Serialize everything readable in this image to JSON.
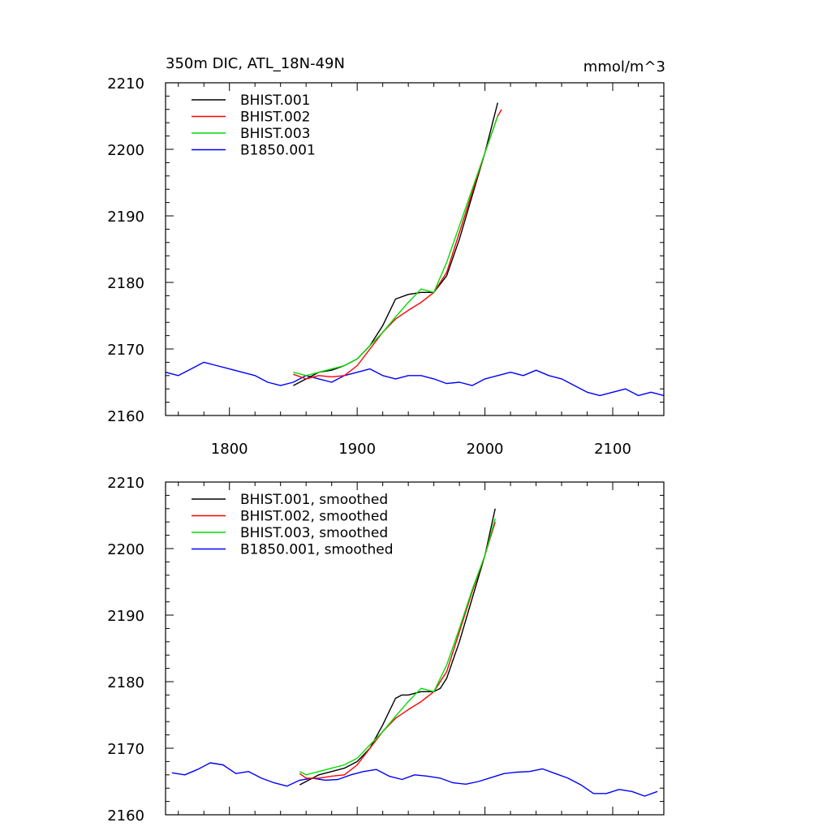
{
  "chart_data": [
    {
      "type": "line",
      "title": "350m DIC, ATL_18N-49N",
      "units": "mmol/m^3",
      "xlabel": "",
      "ylabel": "",
      "xlim": [
        1750,
        2140
      ],
      "ylim": [
        2160,
        2210
      ],
      "x_ticks": [
        1800,
        1900,
        2000,
        2100
      ],
      "y_ticks": [
        2160,
        2170,
        2180,
        2190,
        2200,
        2210
      ],
      "grid": false,
      "legend": "top-left",
      "series": [
        {
          "name": "B1850.001",
          "color": "#0000ff",
          "x": [
            1750,
            1760,
            1770,
            1780,
            1790,
            1800,
            1810,
            1820,
            1830,
            1840,
            1850,
            1860,
            1870,
            1880,
            1890,
            1900,
            1910,
            1920,
            1930,
            1940,
            1950,
            1960,
            1970,
            1980,
            1990,
            2000,
            2010,
            2020,
            2030,
            2040,
            2050,
            2060,
            2070,
            2080,
            2090,
            2100,
            2110,
            2120,
            2130,
            2140
          ],
          "y": [
            2166.5,
            2166,
            2167,
            2168,
            2167.5,
            2167,
            2166.5,
            2166,
            2165,
            2164.5,
            2165,
            2166,
            2165.5,
            2165,
            2166,
            2166.5,
            2167,
            2166,
            2165.5,
            2166,
            2166,
            2165.5,
            2164.8,
            2165,
            2164.5,
            2165.5,
            2166,
            2166.5,
            2166,
            2166.8,
            2166,
            2165.5,
            2164.5,
            2163.5,
            2163,
            2163.5,
            2164,
            2163,
            2163.5,
            2163
          ]
        },
        {
          "name": "BHIST.001",
          "color": "#000000",
          "x": [
            1850,
            1860,
            1870,
            1880,
            1890,
            1900,
            1910,
            1920,
            1930,
            1940,
            1950,
            1960,
            1970,
            1980,
            1990,
            2000,
            2010
          ],
          "y": [
            2164.5,
            2165.5,
            2166.5,
            2166.8,
            2167.5,
            2168.5,
            2170.5,
            2173.5,
            2177.5,
            2178.2,
            2178.5,
            2178.5,
            2181,
            2186.5,
            2193,
            2199.5,
            2207
          ]
        },
        {
          "name": "BHIST.002",
          "color": "#ff0000",
          "x": [
            1850,
            1860,
            1870,
            1880,
            1890,
            1900,
            1910,
            1920,
            1930,
            1940,
            1950,
            1960,
            1970,
            1980,
            1990,
            2000,
            2010,
            2013
          ],
          "y": [
            2166.2,
            2165.5,
            2166,
            2165.8,
            2166,
            2167.5,
            2170,
            2172.5,
            2174.5,
            2175.8,
            2177,
            2178.5,
            2181.5,
            2187.5,
            2193.5,
            2199.5,
            2205,
            2206
          ]
        },
        {
          "name": "BHIST.003",
          "color": "#00dd00",
          "x": [
            1850,
            1860,
            1870,
            1880,
            1890,
            1900,
            1910,
            1920,
            1930,
            1940,
            1950,
            1960,
            1970,
            1980,
            1990,
            2000,
            2010
          ],
          "y": [
            2166.5,
            2166,
            2166.5,
            2167,
            2167.5,
            2168.5,
            2170.5,
            2172.5,
            2174.8,
            2177,
            2179,
            2178.5,
            2183,
            2188.5,
            2194,
            2199.5,
            2205
          ]
        }
      ]
    },
    {
      "type": "line",
      "title": "",
      "xlabel": "",
      "ylabel": "",
      "xlim": [
        1750,
        2140
      ],
      "ylim": [
        2160,
        2210
      ],
      "x_ticks": [
        1800,
        1900,
        2000,
        2100
      ],
      "y_ticks": [
        2160,
        2170,
        2180,
        2190,
        2200,
        2210
      ],
      "grid": false,
      "legend": "top-left",
      "series": [
        {
          "name": "B1850.001, smoothed",
          "color": "#0000ff",
          "x": [
            1755,
            1765,
            1775,
            1785,
            1795,
            1805,
            1815,
            1825,
            1835,
            1845,
            1855,
            1865,
            1875,
            1885,
            1895,
            1905,
            1915,
            1925,
            1935,
            1945,
            1955,
            1965,
            1975,
            1985,
            1995,
            2005,
            2015,
            2025,
            2035,
            2045,
            2055,
            2065,
            2075,
            2085,
            2095,
            2105,
            2115,
            2125,
            2135
          ],
          "y": [
            2166.3,
            2166,
            2166.8,
            2167.8,
            2167.5,
            2166.2,
            2166.5,
            2165.5,
            2164.8,
            2164.3,
            2165.2,
            2165.5,
            2165.2,
            2165.3,
            2166,
            2166.5,
            2166.8,
            2165.8,
            2165.3,
            2166,
            2165.8,
            2165.5,
            2164.8,
            2164.6,
            2165,
            2165.6,
            2166.2,
            2166.4,
            2166.5,
            2166.9,
            2166.2,
            2165.5,
            2164.5,
            2163.2,
            2163.2,
            2163.8,
            2163.5,
            2162.8,
            2163.5
          ]
        },
        {
          "name": "BHIST.001, smoothed",
          "color": "#000000",
          "x": [
            1855,
            1860,
            1870,
            1880,
            1890,
            1900,
            1910,
            1920,
            1930,
            1935,
            1940,
            1950,
            1960,
            1965,
            1970,
            1980,
            1990,
            2000,
            2008
          ],
          "y": [
            2164.5,
            2165,
            2166,
            2166.5,
            2167,
            2168,
            2170,
            2173.5,
            2177.5,
            2178,
            2178,
            2178.5,
            2178.5,
            2179,
            2180.5,
            2186,
            2192.5,
            2199,
            2206
          ]
        },
        {
          "name": "BHIST.002, smoothed",
          "color": "#ff0000",
          "x": [
            1855,
            1860,
            1870,
            1880,
            1890,
            1900,
            1910,
            1920,
            1930,
            1940,
            1950,
            1960,
            1970,
            1980,
            1990,
            2000,
            2008
          ],
          "y": [
            2166.2,
            2165.5,
            2165.5,
            2165.8,
            2166,
            2167.5,
            2170,
            2172.5,
            2174.5,
            2175.8,
            2177,
            2178.5,
            2181.5,
            2187.5,
            2193.5,
            2199,
            2204
          ]
        },
        {
          "name": "BHIST.003, smoothed",
          "color": "#00dd00",
          "x": [
            1855,
            1860,
            1870,
            1880,
            1890,
            1900,
            1910,
            1920,
            1930,
            1940,
            1950,
            1960,
            1970,
            1980,
            1990,
            2000,
            2008
          ],
          "y": [
            2166.5,
            2166,
            2166.5,
            2167,
            2167.5,
            2168.5,
            2170.5,
            2172.5,
            2174.8,
            2177,
            2179,
            2178.5,
            2182.5,
            2188,
            2193.8,
            2199,
            2204.5
          ]
        }
      ]
    }
  ]
}
